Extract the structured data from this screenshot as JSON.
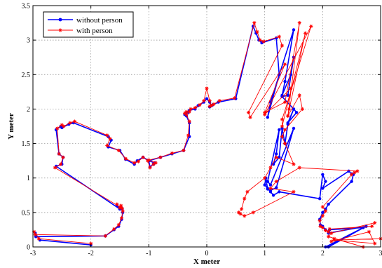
{
  "chart_data": {
    "type": "line",
    "xlabel": "X meter",
    "ylabel": "Y meter",
    "xlim": [
      -3,
      3
    ],
    "ylim": [
      0,
      3.5
    ],
    "xticks": [
      -3,
      -2,
      -1,
      0,
      1,
      2,
      3
    ],
    "yticks": [
      0,
      0.5,
      1,
      1.5,
      2,
      2.5,
      3,
      3.5
    ],
    "grid": true,
    "legend_position": "top-left",
    "series": [
      {
        "name": "without person",
        "color": "#0000ff",
        "marker": "dot",
        "x": [
          -2.0,
          -2.88,
          -2.96,
          -2.95,
          -1.75,
          -1.6,
          -1.52,
          -1.47,
          -1.45,
          -1.46,
          -1.48,
          -1.5,
          -1.55,
          -1.5,
          -1.5,
          -2.6,
          -2.5,
          -2.48,
          -2.55,
          -2.6,
          -2.52,
          -2.5,
          -2.38,
          -2.3,
          -1.7,
          -1.65,
          -1.7,
          -1.5,
          -1.4,
          -1.25,
          -1.2,
          -1.1,
          -1.0,
          -0.98,
          -0.92,
          -0.9,
          -1.0,
          -0.8,
          -0.6,
          -0.4,
          -0.3,
          -0.3,
          -0.35,
          -0.38,
          -0.35,
          -0.32,
          -0.3,
          -0.2,
          -0.15,
          -0.05,
          0.0,
          0.05,
          0.08,
          0.05,
          0.1,
          0.2,
          0.5,
          0.8,
          0.85,
          0.9,
          0.95,
          1.2,
          1.25,
          1.05,
          1.1,
          1.5,
          1.35,
          1.3,
          1.45,
          1.5,
          1.4,
          1.3,
          1.5,
          1.55,
          1.4,
          1.5,
          1.4,
          1.35,
          1.3,
          1.25,
          1.15,
          1.2,
          1.25,
          1.05,
          1.1,
          1.5,
          1.2,
          1.1,
          1.05,
          1.02,
          1.0,
          1.05,
          1.1,
          1.15,
          1.25,
          1.95,
          2.0,
          2.05,
          2.0,
          2.45,
          2.5,
          2.53,
          2.5,
          2.1,
          2.05,
          2.0,
          1.95,
          1.96,
          2.0,
          2.05,
          2.1,
          2.12,
          2.7,
          2.75,
          2.1,
          2.05,
          2.75,
          2.1
        ],
        "y": [
          0.03,
          0.1,
          0.2,
          0.15,
          0.16,
          0.25,
          0.3,
          0.4,
          0.5,
          0.55,
          0.58,
          0.55,
          0.6,
          0.55,
          0.55,
          1.17,
          1.2,
          1.3,
          1.35,
          1.7,
          1.75,
          1.73,
          1.78,
          1.8,
          1.6,
          1.55,
          1.45,
          1.4,
          1.27,
          1.2,
          1.25,
          1.3,
          1.25,
          1.16,
          1.2,
          1.22,
          1.25,
          1.3,
          1.35,
          1.4,
          1.6,
          1.8,
          1.9,
          1.92,
          1.95,
          1.95,
          1.98,
          2.0,
          2.05,
          2.1,
          2.15,
          2.1,
          2.05,
          2.03,
          2.06,
          2.1,
          2.15,
          3.2,
          3.1,
          3.0,
          2.96,
          3.03,
          2.5,
          1.88,
          2.1,
          3.15,
          2.4,
          2.2,
          2.5,
          2.75,
          2.2,
          2.18,
          2.0,
          1.95,
          1.8,
          2.0,
          1.78,
          1.5,
          1.72,
          1.3,
          1.2,
          1.35,
          1.7,
          0.95,
          0.9,
          1.72,
          0.86,
          0.82,
          0.84,
          1.0,
          0.9,
          0.85,
          0.8,
          0.75,
          0.8,
          0.7,
          1.05,
          0.95,
          0.85,
          1.1,
          1.06,
          1.05,
          0.95,
          0.62,
          0.55,
          0.5,
          0.4,
          0.32,
          0.3,
          0.25,
          0.22,
          0.25,
          0.28,
          0.3,
          0.0,
          0.0,
          0.3,
          0.2
        ],
        "x_note": ""
      },
      {
        "name": "with person",
        "color": "#ff0000",
        "marker": "star",
        "x": [
          -2.0,
          -2.9,
          -2.98,
          -2.96,
          -1.75,
          -1.6,
          -1.52,
          -1.47,
          -1.45,
          -1.46,
          -1.48,
          -1.5,
          -1.55,
          -1.5,
          -1.48,
          -2.62,
          -2.52,
          -2.48,
          -2.55,
          -2.58,
          -2.5,
          -2.47,
          -2.36,
          -2.28,
          -1.72,
          -1.67,
          -1.72,
          -1.52,
          -1.4,
          -1.25,
          -1.18,
          -1.1,
          -1.02,
          -0.98,
          -0.92,
          -0.88,
          -1.0,
          -0.8,
          -0.6,
          -0.4,
          -0.32,
          -0.3,
          -0.35,
          -0.38,
          -0.35,
          -0.3,
          -0.28,
          -0.2,
          -0.12,
          -0.05,
          0.0,
          0.05,
          0.08,
          0.05,
          0.12,
          0.22,
          0.48,
          0.82,
          0.87,
          0.92,
          0.98,
          1.25,
          1.3,
          0.72,
          0.75,
          1.35,
          1.0,
          1.35,
          1.6,
          1.4,
          1.7,
          1.3,
          1.3,
          1.8,
          1.0,
          1.45,
          1.42,
          1.4,
          1.6,
          1.65,
          1.35,
          1.3,
          1.35,
          1.5,
          1.2,
          1.1,
          1.0,
          0.7,
          0.65,
          0.6,
          0.55,
          0.58,
          0.65,
          0.8,
          1.5,
          1.1,
          1.2,
          1.6,
          2.6,
          2.55,
          2.5,
          2.0,
          2.05,
          2.0,
          1.95,
          1.96,
          2.0,
          2.05,
          2.1,
          2.12,
          2.85,
          2.9,
          2.15,
          2.1,
          2.7,
          2.2,
          2.15,
          2.8,
          2.9,
          2.2,
          3.0
        ],
        "y": [
          0.05,
          0.12,
          0.22,
          0.18,
          0.16,
          0.26,
          0.32,
          0.42,
          0.52,
          0.56,
          0.6,
          0.57,
          0.62,
          0.57,
          0.57,
          1.15,
          1.2,
          1.3,
          1.35,
          1.72,
          1.77,
          1.75,
          1.8,
          1.82,
          1.62,
          1.57,
          1.47,
          1.4,
          1.28,
          1.22,
          1.24,
          1.3,
          1.25,
          1.15,
          1.2,
          1.22,
          1.26,
          1.3,
          1.36,
          1.4,
          1.62,
          1.82,
          1.92,
          1.94,
          1.96,
          1.96,
          2.0,
          2.02,
          2.06,
          2.12,
          2.3,
          2.12,
          2.05,
          2.04,
          2.07,
          2.12,
          2.16,
          3.25,
          3.12,
          3.0,
          2.98,
          3.05,
          2.92,
          1.95,
          1.88,
          2.65,
          1.95,
          2.1,
          3.25,
          1.9,
          3.1,
          1.75,
          1.85,
          3.2,
          1.92,
          2.3,
          2.0,
          1.9,
          2.2,
          2.0,
          1.7,
          1.6,
          1.5,
          1.2,
          1.3,
          1.15,
          1.0,
          0.8,
          0.7,
          0.55,
          0.5,
          0.48,
          0.45,
          0.5,
          0.8,
          0.85,
          0.95,
          1.15,
          1.1,
          1.08,
          1.05,
          0.58,
          0.52,
          0.45,
          0.38,
          0.3,
          0.28,
          0.24,
          0.22,
          0.26,
          0.3,
          0.35,
          0.2,
          0.15,
          0.0,
          0.12,
          0.08,
          0.22,
          0.05,
          0.1,
          0.12
        ]
      }
    ]
  }
}
